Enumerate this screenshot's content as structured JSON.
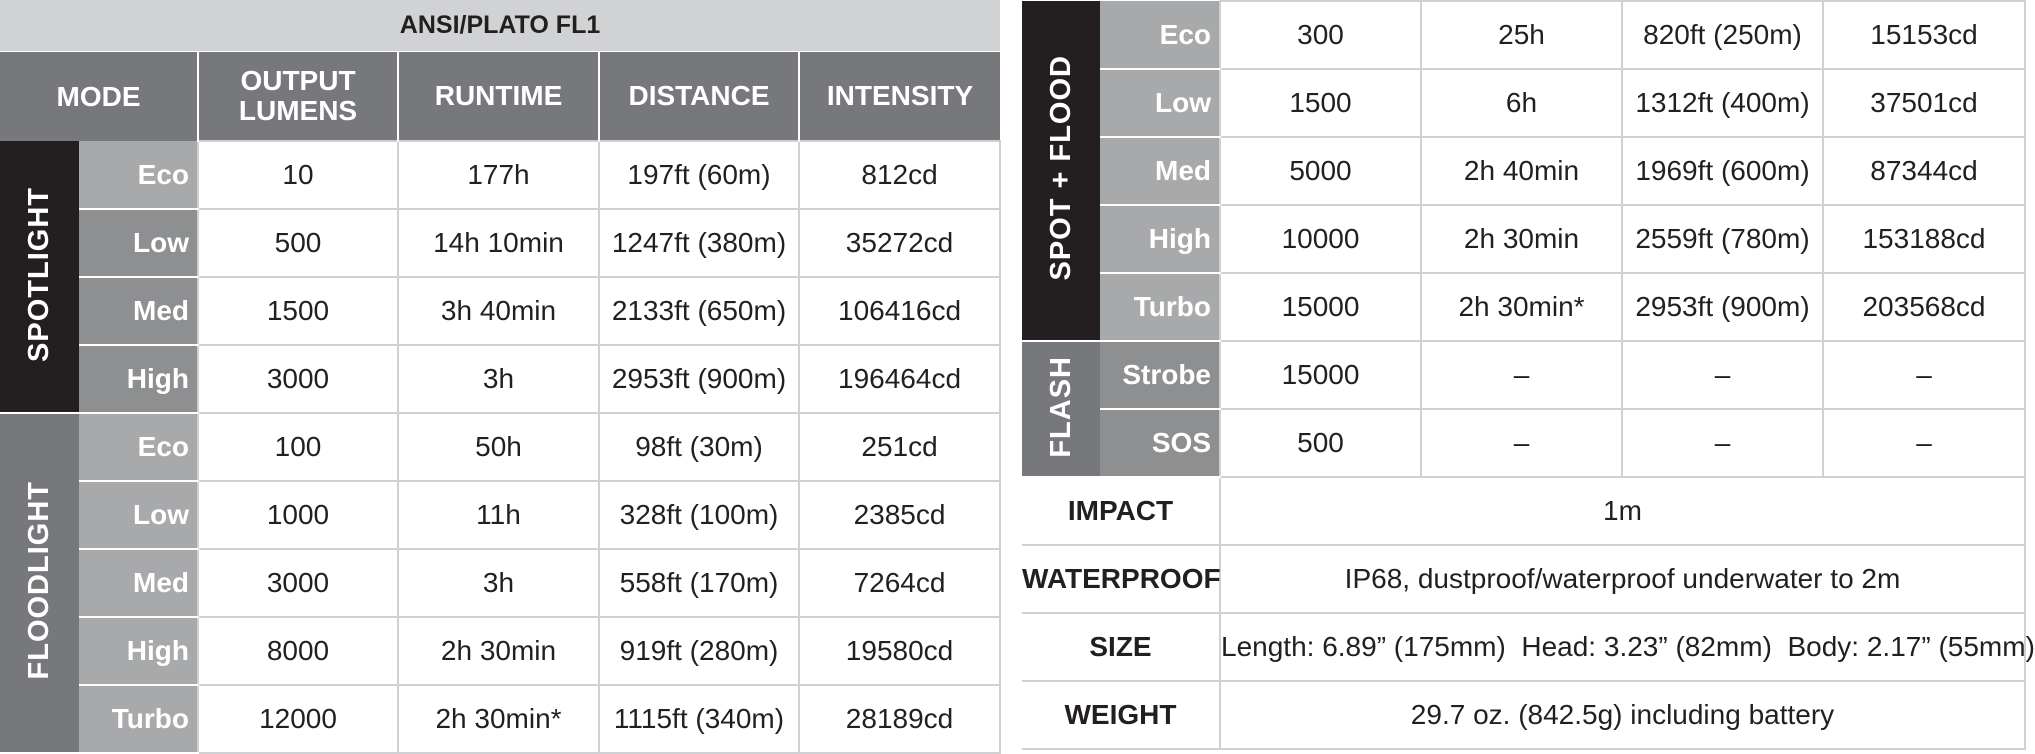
{
  "left_table": {
    "title": "ANSI/PLATO FL1",
    "headers": {
      "mode": "MODE",
      "output_line1": "OUTPUT",
      "output_line2": "LUMENS",
      "runtime": "RUNTIME",
      "distance": "DISTANCE",
      "intensity": "INTENSITY"
    },
    "groups": [
      {
        "label": "SPOTLIGHT",
        "rows": [
          {
            "mode": "Eco",
            "output": "10",
            "runtime": "177h",
            "distance": "197ft (60m)",
            "intensity": "812cd"
          },
          {
            "mode": "Low",
            "output": "500",
            "runtime": "14h 10min",
            "distance": "1247ft (380m)",
            "intensity": "35272cd"
          },
          {
            "mode": "Med",
            "output": "1500",
            "runtime": "3h 40min",
            "distance": "2133ft (650m)",
            "intensity": "106416cd"
          },
          {
            "mode": "High",
            "output": "3000",
            "runtime": "3h",
            "distance": "2953ft (900m)",
            "intensity": "196464cd"
          }
        ]
      },
      {
        "label": "FLOODLIGHT",
        "rows": [
          {
            "mode": "Eco",
            "output": "100",
            "runtime": "50h",
            "distance": "98ft (30m)",
            "intensity": "251cd"
          },
          {
            "mode": "Low",
            "output": "1000",
            "runtime": "11h",
            "distance": "328ft (100m)",
            "intensity": "2385cd"
          },
          {
            "mode": "Med",
            "output": "3000",
            "runtime": "3h",
            "distance": "558ft (170m)",
            "intensity": "7264cd"
          },
          {
            "mode": "High",
            "output": "8000",
            "runtime": "2h 30min",
            "distance": "919ft (280m)",
            "intensity": "19580cd"
          },
          {
            "mode": "Turbo",
            "output": "12000",
            "runtime": "2h 30min*",
            "distance": "1115ft (340m)",
            "intensity": "28189cd"
          }
        ]
      }
    ]
  },
  "right_table": {
    "groups": [
      {
        "label": "SPOT + FLOOD",
        "rows": [
          {
            "mode": "Eco",
            "output": "300",
            "runtime": "25h",
            "distance": "820ft (250m)",
            "intensity": "15153cd"
          },
          {
            "mode": "Low",
            "output": "1500",
            "runtime": "6h",
            "distance": "1312ft (400m)",
            "intensity": "37501cd"
          },
          {
            "mode": "Med",
            "output": "5000",
            "runtime": "2h 40min",
            "distance": "1969ft (600m)",
            "intensity": "87344cd"
          },
          {
            "mode": "High",
            "output": "10000",
            "runtime": "2h 30min",
            "distance": "2559ft (780m)",
            "intensity": "153188cd"
          },
          {
            "mode": "Turbo",
            "output": "15000",
            "runtime": "2h 30min*",
            "distance": "2953ft (900m)",
            "intensity": "203568cd"
          }
        ]
      },
      {
        "label": "FLASH",
        "rows": [
          {
            "mode": "Strobe",
            "output": "15000",
            "runtime": "–",
            "distance": "–",
            "intensity": "–"
          },
          {
            "mode": "SOS",
            "output": "500",
            "runtime": "–",
            "distance": "–",
            "intensity": "–"
          }
        ]
      }
    ],
    "specs": [
      {
        "label": "IMPACT",
        "value": "1m"
      },
      {
        "label": "WATERPROOF",
        "value": "IP68, dustproof/waterproof underwater to 2m"
      },
      {
        "label": "SIZE",
        "value": "Length: 6.89” (175mm)  Head: 3.23” (82mm)  Body: 2.17” (55mm)"
      },
      {
        "label": "WEIGHT",
        "value": "29.7 oz. (842.5g) including battery"
      }
    ]
  },
  "colors": {
    "title_bg": "#d1d2d4",
    "header_bg": "#77787b",
    "mode_bg": "#8e8f91",
    "mode_light_bg": "#a8a9ab",
    "group_dark_bg": "#231f20",
    "grid_line": "#cfd0d2"
  }
}
